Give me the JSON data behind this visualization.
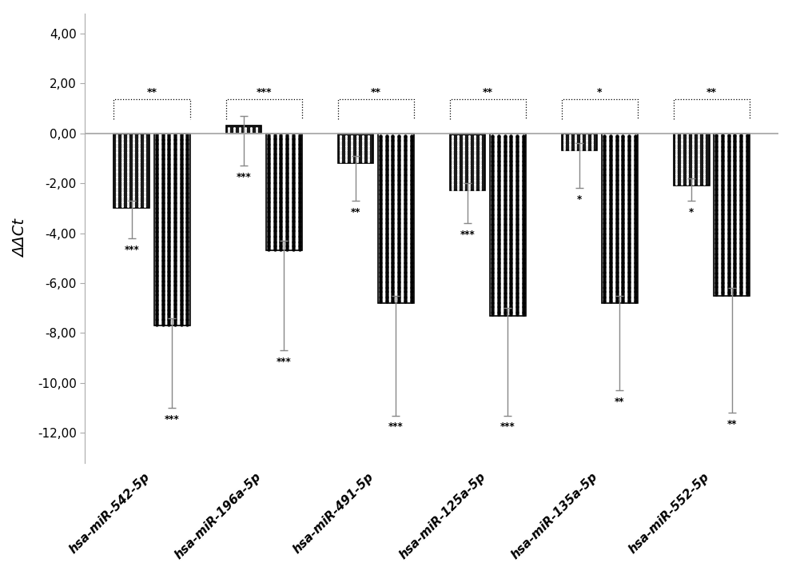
{
  "categories": [
    "hsa-miR-542-5p",
    "hsa-miR-196a-5p",
    "hsa-miR-491-5p",
    "hsa-miR-125a-5p",
    "hsa-miR-135a-5p",
    "hsa-miR-552-5p"
  ],
  "black_values": [
    -3.0,
    0.3,
    -1.2,
    -2.3,
    -0.7,
    -2.1
  ],
  "grey_values": [
    -7.7,
    -4.7,
    -6.8,
    -7.3,
    -6.8,
    -6.5
  ],
  "black_errors_down": [
    1.2,
    1.6,
    1.5,
    1.3,
    1.5,
    0.6
  ],
  "black_errors_up": [
    0.3,
    0.4,
    0.3,
    0.3,
    0.3,
    0.3
  ],
  "grey_errors_down": [
    3.3,
    4.0,
    4.5,
    4.0,
    3.5,
    4.7
  ],
  "grey_errors_up": [
    0.3,
    0.4,
    0.3,
    0.3,
    0.3,
    0.3
  ],
  "ylabel": "ΔΔCt",
  "ylim": [
    -13.2,
    4.8
  ],
  "yticks": [
    4.0,
    2.0,
    0.0,
    -2.0,
    -4.0,
    -6.0,
    -8.0,
    -10.0,
    -12.0
  ],
  "ytick_labels": [
    "4,00",
    "2,00",
    "0,00",
    "-2,00",
    "-4,00",
    "-6,00",
    "-8,00",
    "-10,00",
    "-12,00"
  ],
  "bar_width": 0.32,
  "significance_between": [
    "**",
    "***",
    "**",
    "**",
    "*",
    "**"
  ],
  "significance_black": [
    "***",
    "***",
    "**",
    "***",
    "*",
    "*"
  ],
  "significance_grey": [
    "***",
    "***",
    "***",
    "***",
    "**",
    "**"
  ],
  "background_color": "#ffffff",
  "error_color": "#888888"
}
